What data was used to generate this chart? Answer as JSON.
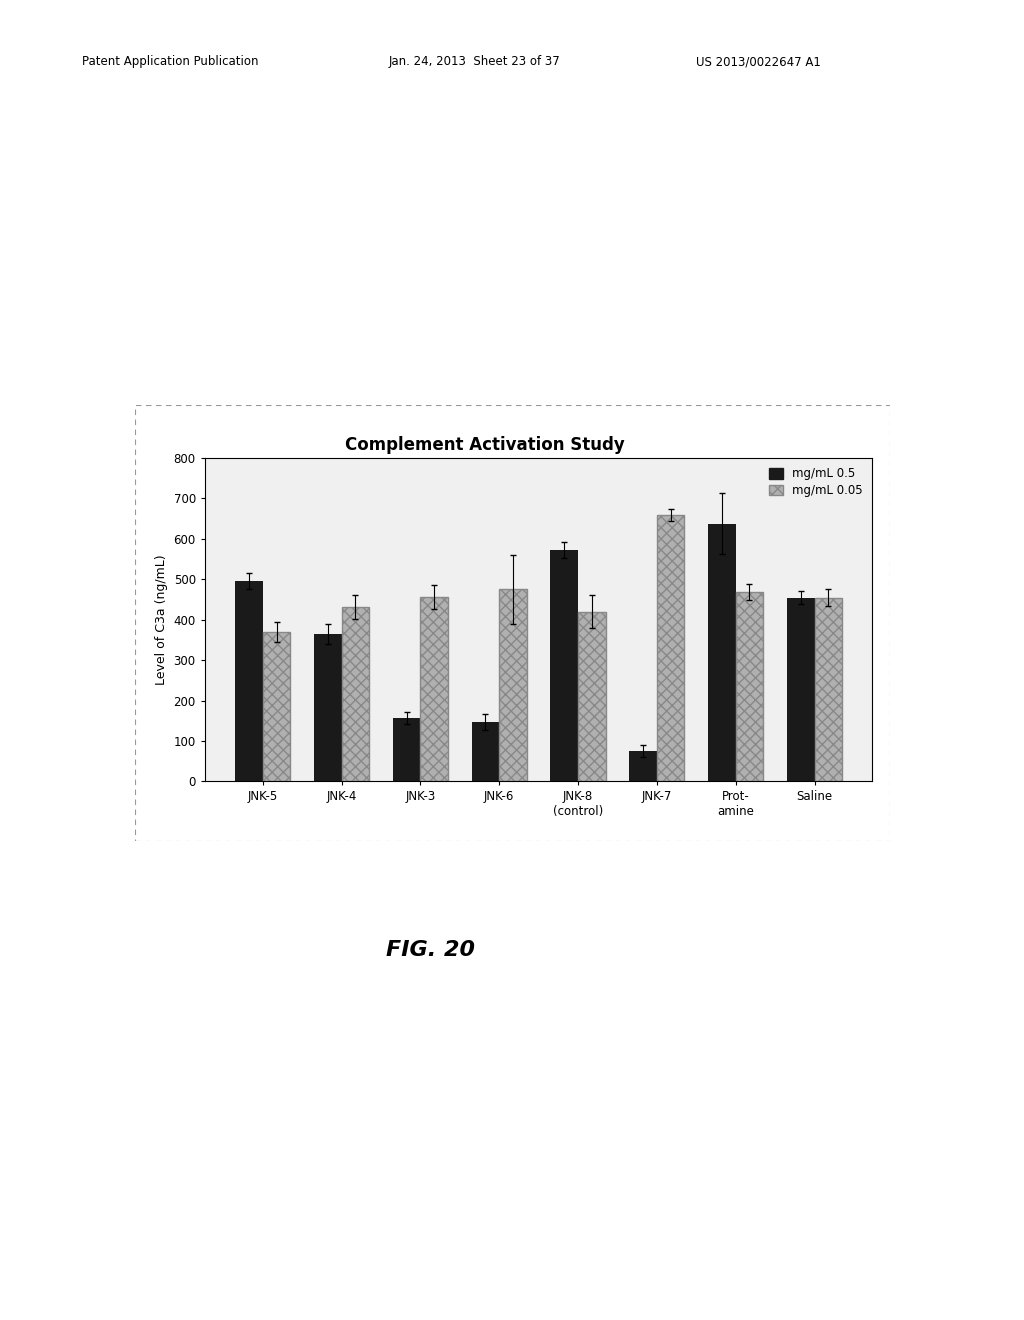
{
  "title": "Complement Activation Study",
  "ylabel": "Level of C3a (ng/mL)",
  "categories": [
    "JNK-5",
    "JNK-4",
    "JNK-3",
    "JNK-6",
    "JNK-8\n(control)",
    "JNK-7",
    "Prot-\namine",
    "Saline"
  ],
  "values_05": [
    495,
    365,
    158,
    148,
    573,
    75,
    638,
    455
  ],
  "values_005": [
    370,
    432,
    457,
    475,
    420,
    660,
    468,
    455
  ],
  "errors_05": [
    20,
    25,
    15,
    20,
    20,
    15,
    75,
    15
  ],
  "errors_005": [
    25,
    30,
    30,
    85,
    40,
    15,
    20,
    20
  ],
  "ylim": [
    0,
    800
  ],
  "yticks": [
    0,
    100,
    200,
    300,
    400,
    500,
    600,
    700,
    800
  ],
  "color_05": "#1a1a1a",
  "color_005": "#b0b0b0",
  "hatch_005": "xxx",
  "legend_05": "mg/mL 0.5",
  "legend_005": "mg/mL 0.05",
  "title_fontsize": 12,
  "axis_fontsize": 9,
  "tick_fontsize": 8.5,
  "background_color": "#f0f0f0",
  "header_left": "Patent Application Publication",
  "header_center": "Jan. 24, 2013  Sheet 23 of 37",
  "header_right": "US 2013/0022647 A1",
  "fig_label": "FIG. 20"
}
